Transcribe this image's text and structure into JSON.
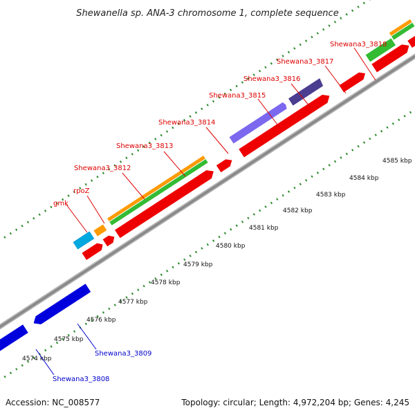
{
  "title": "Shewanella sp. ANA-3 chromosome 1, complete sequence",
  "footer": {
    "accession": "Accession: NC_008577",
    "topology": "Topology: circular; Length: 4,972,204 bp; Genes: 4,245"
  },
  "colors": {
    "forward_label": "#dd0000",
    "reverse_label": "#0000cc",
    "backbone": "#8a8a8a",
    "tick_dots": "#2e8b2e"
  },
  "tick_labels": [
    "4574 kbp",
    "4575 kbp",
    "4576 kbp",
    "4577 kbp",
    "4578 kbp",
    "4579 kbp",
    "4580 kbp",
    "4581 kbp",
    "4582 kbp",
    "4583 kbp",
    "4584 kbp",
    "4585 kbp"
  ],
  "forward_labels": [
    "gmk",
    "rpoZ",
    "Shewana3_3812",
    "Shewana3_3813",
    "Shewana3_3814",
    "Shewana3_3815",
    "Shewana3_3816",
    "Shewana3_3817",
    "Shewana3_3818"
  ],
  "reverse_labels": [
    "Shewana3_3808",
    "Shewana3_3809"
  ]
}
